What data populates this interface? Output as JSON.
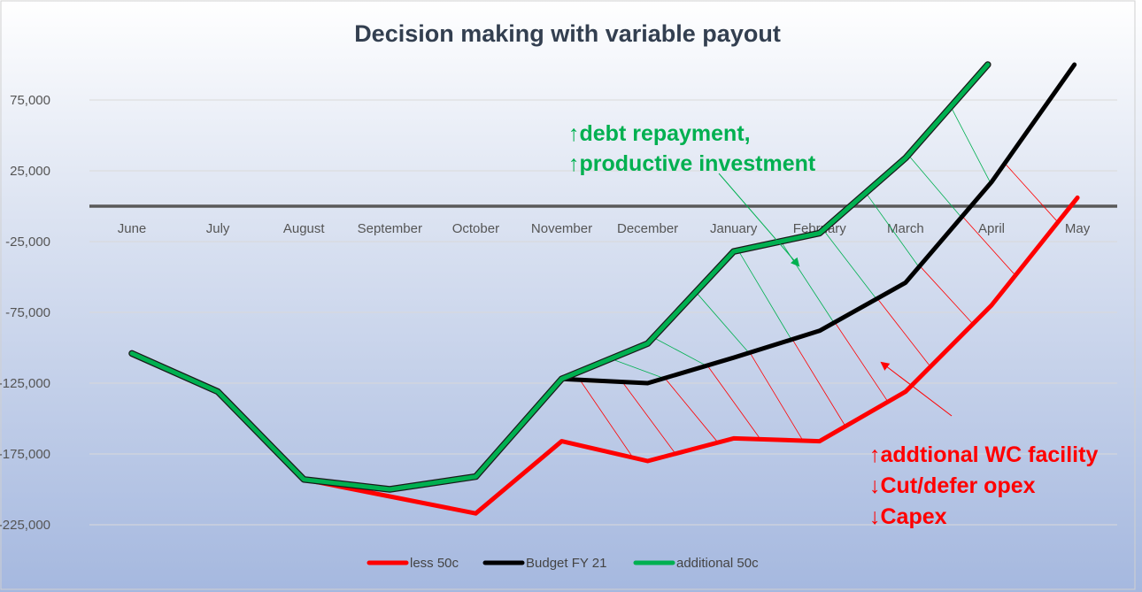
{
  "chart_data": {
    "type": "line",
    "title": "Decision making with variable payout",
    "categories": [
      "June",
      "July",
      "August",
      "September",
      "October",
      "November",
      "December",
      "January",
      "February",
      "March",
      "April",
      "May"
    ],
    "ylim": [
      -250000,
      100000
    ],
    "yticks": [
      75000,
      25000,
      -25000,
      -75000,
      -125000,
      -175000,
      -225000
    ],
    "ytick_labels": [
      "75,000",
      "25,000",
      "-25,000",
      "-75,000",
      "-125,000",
      "-175,000",
      "-225,000"
    ],
    "grid": true,
    "legend_position": "bottom",
    "series": [
      {
        "name": "less 50c",
        "color": "#ff0000",
        "values": [
          -104000,
          -131000,
          -193000,
          -205000,
          -217000,
          -166000,
          -180000,
          -164000,
          -166000,
          -131000,
          -70000,
          6000
        ]
      },
      {
        "name": "Budget FY 21",
        "color": "#000000",
        "values": [
          -104000,
          -131000,
          -193000,
          -200000,
          -191000,
          -122000,
          -125000,
          -107000,
          -88000,
          -54000,
          17000,
          103000
        ]
      },
      {
        "name": "additional 50c",
        "color": "#00b050",
        "values": [
          -104000,
          -131000,
          -193000,
          -200000,
          -191000,
          -122000,
          -97000,
          -32000,
          -19000,
          34000,
          103000,
          null
        ]
      }
    ],
    "annotations": {
      "green_lines": [
        "↑debt repayment,",
        "↑productive investment"
      ],
      "red_lines": [
        "↑addtional WC facility",
        "↓Cut/defer opex",
        "↓Capex"
      ]
    }
  }
}
